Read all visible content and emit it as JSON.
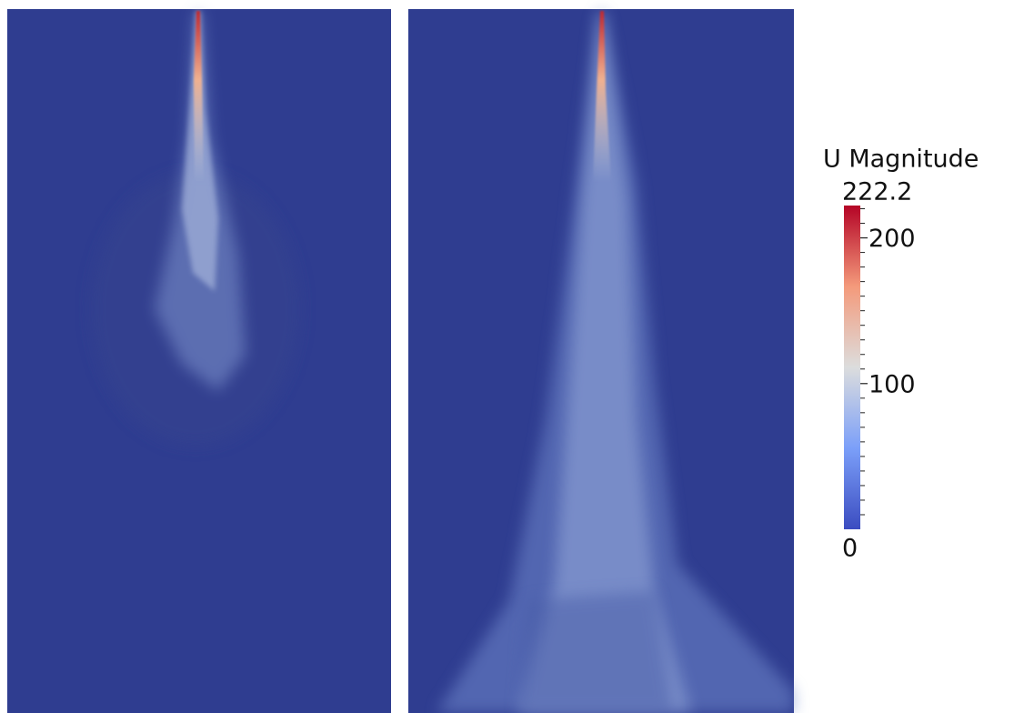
{
  "colorbar": {
    "title": "U Magnitude",
    "range": [
      0,
      222.2
    ],
    "ticks": [
      100,
      200
    ],
    "minor_ticks": [
      10,
      20,
      30,
      40,
      50,
      60,
      70,
      80,
      90,
      110,
      120,
      130,
      140,
      150,
      160,
      170,
      180,
      190,
      210,
      220
    ]
  }
}
